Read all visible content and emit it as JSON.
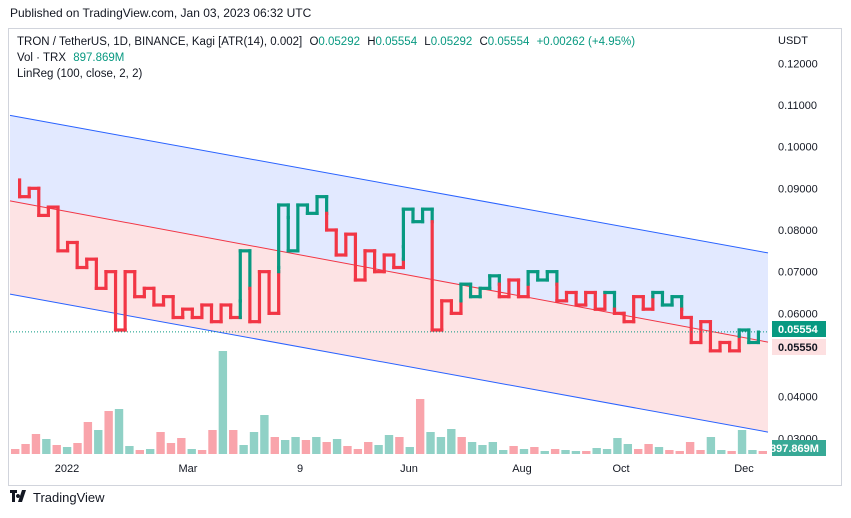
{
  "header": {
    "published": "Published on TradingView.com, Jan 03, 2023 06:32 UTC"
  },
  "legend": {
    "symbol": "TRON / TetherUS, 1D, BINANCE, Kagi [ATR(14), 0.002]",
    "o_label": "O",
    "o": "0.05292",
    "h_label": "H",
    "h": "0.05554",
    "l_label": "L",
    "l": "0.05292",
    "c_label": "C",
    "c": "0.05554",
    "change": "+0.00262 (+4.95%)",
    "vol_label": "Vol · TRX",
    "vol_value": "897.869M",
    "linreg": "LinReg (100, close, 2, 2)"
  },
  "footer": {
    "brand": "TradingView"
  },
  "colors": {
    "up": "#089981",
    "down": "#f23645",
    "channel_upper_fill": "#dfe7ff",
    "channel_lower_fill": "#fde0e1",
    "channel_line": "#2962ff",
    "mid_line": "#f23645"
  },
  "chart_data": {
    "type": "kagi",
    "currency": "USDT",
    "y_ticks": [
      "0.12000",
      "0.11000",
      "0.10000",
      "0.09000",
      "0.08000",
      "0.07000",
      "0.06000",
      "0.04000",
      "0.03000"
    ],
    "x_ticks": [
      "2022",
      "Mar",
      "9",
      "Jun",
      "Aug",
      "Oct",
      "Dec"
    ],
    "last_price": "0.05554",
    "regression_label": "0.05550",
    "volume_label": "897.869M",
    "ylim": [
      0.026,
      0.128
    ],
    "kagi": [
      {
        "x": 1,
        "y": 0.092,
        "t": "d"
      },
      {
        "x": 1,
        "y": 0.088,
        "t": "d"
      },
      {
        "x": 2,
        "y": 0.088,
        "t": "d"
      },
      {
        "x": 2,
        "y": 0.09,
        "t": "d"
      },
      {
        "x": 3,
        "y": 0.09,
        "t": "d"
      },
      {
        "x": 3,
        "y": 0.0835,
        "t": "d"
      },
      {
        "x": 4,
        "y": 0.0835,
        "t": "d"
      },
      {
        "x": 4,
        "y": 0.0855,
        "t": "d"
      },
      {
        "x": 5,
        "y": 0.0855,
        "t": "d"
      },
      {
        "x": 5,
        "y": 0.075,
        "t": "d"
      },
      {
        "x": 6,
        "y": 0.075,
        "t": "d"
      },
      {
        "x": 6,
        "y": 0.077,
        "t": "d"
      },
      {
        "x": 7,
        "y": 0.077,
        "t": "d"
      },
      {
        "x": 7,
        "y": 0.071,
        "t": "d"
      },
      {
        "x": 8,
        "y": 0.071,
        "t": "d"
      },
      {
        "x": 8,
        "y": 0.073,
        "t": "d"
      },
      {
        "x": 9,
        "y": 0.073,
        "t": "d"
      },
      {
        "x": 9,
        "y": 0.066,
        "t": "d"
      },
      {
        "x": 10,
        "y": 0.066,
        "t": "d"
      },
      {
        "x": 10,
        "y": 0.07,
        "t": "d"
      },
      {
        "x": 11,
        "y": 0.07,
        "t": "d"
      },
      {
        "x": 11,
        "y": 0.056,
        "t": "d"
      },
      {
        "x": 12,
        "y": 0.056,
        "t": "d"
      },
      {
        "x": 12,
        "y": 0.07,
        "t": "d"
      },
      {
        "x": 13,
        "y": 0.07,
        "t": "d"
      },
      {
        "x": 13,
        "y": 0.064,
        "t": "d"
      },
      {
        "x": 14,
        "y": 0.064,
        "t": "d"
      },
      {
        "x": 14,
        "y": 0.066,
        "t": "d"
      },
      {
        "x": 15,
        "y": 0.066,
        "t": "d"
      },
      {
        "x": 15,
        "y": 0.062,
        "t": "d"
      },
      {
        "x": 16,
        "y": 0.062,
        "t": "d"
      },
      {
        "x": 16,
        "y": 0.064,
        "t": "d"
      },
      {
        "x": 17,
        "y": 0.064,
        "t": "d"
      },
      {
        "x": 17,
        "y": 0.059,
        "t": "d"
      },
      {
        "x": 18,
        "y": 0.059,
        "t": "d"
      },
      {
        "x": 18,
        "y": 0.061,
        "t": "d"
      },
      {
        "x": 19,
        "y": 0.061,
        "t": "d"
      },
      {
        "x": 19,
        "y": 0.059,
        "t": "d"
      },
      {
        "x": 20,
        "y": 0.059,
        "t": "d"
      },
      {
        "x": 20,
        "y": 0.062,
        "t": "d"
      },
      {
        "x": 21,
        "y": 0.062,
        "t": "d"
      },
      {
        "x": 21,
        "y": 0.058,
        "t": "d"
      },
      {
        "x": 22,
        "y": 0.058,
        "t": "d"
      },
      {
        "x": 22,
        "y": 0.062,
        "t": "d"
      },
      {
        "x": 23,
        "y": 0.062,
        "t": "d"
      },
      {
        "x": 23,
        "y": 0.059,
        "t": "d"
      },
      {
        "x": 24,
        "y": 0.059,
        "t": "d"
      },
      {
        "x": 24,
        "y": 0.063,
        "t": "u"
      },
      {
        "x": 24,
        "y": 0.075,
        "t": "u"
      },
      {
        "x": 25,
        "y": 0.075,
        "t": "u"
      },
      {
        "x": 25,
        "y": 0.066,
        "t": "u"
      },
      {
        "x": 25,
        "y": 0.058,
        "t": "d"
      },
      {
        "x": 26,
        "y": 0.058,
        "t": "d"
      },
      {
        "x": 26,
        "y": 0.07,
        "t": "d"
      },
      {
        "x": 27,
        "y": 0.07,
        "t": "d"
      },
      {
        "x": 27,
        "y": 0.06,
        "t": "d"
      },
      {
        "x": 28,
        "y": 0.06,
        "t": "d"
      },
      {
        "x": 28,
        "y": 0.07,
        "t": "d"
      },
      {
        "x": 28,
        "y": 0.071,
        "t": "u"
      },
      {
        "x": 28,
        "y": 0.086,
        "t": "u"
      },
      {
        "x": 29,
        "y": 0.086,
        "t": "u"
      },
      {
        "x": 29,
        "y": 0.083,
        "t": "u"
      },
      {
        "x": 29,
        "y": 0.075,
        "t": "u"
      },
      {
        "x": 30,
        "y": 0.075,
        "t": "u"
      },
      {
        "x": 30,
        "y": 0.086,
        "t": "u"
      },
      {
        "x": 31,
        "y": 0.086,
        "t": "u"
      },
      {
        "x": 31,
        "y": 0.084,
        "t": "u"
      },
      {
        "x": 32,
        "y": 0.084,
        "t": "u"
      },
      {
        "x": 32,
        "y": 0.088,
        "t": "u"
      },
      {
        "x": 33,
        "y": 0.088,
        "t": "u"
      },
      {
        "x": 33,
        "y": 0.084,
        "t": "u"
      },
      {
        "x": 33,
        "y": 0.08,
        "t": "d"
      },
      {
        "x": 34,
        "y": 0.08,
        "t": "d"
      },
      {
        "x": 34,
        "y": 0.074,
        "t": "d"
      },
      {
        "x": 35,
        "y": 0.074,
        "t": "d"
      },
      {
        "x": 35,
        "y": 0.079,
        "t": "d"
      },
      {
        "x": 36,
        "y": 0.079,
        "t": "d"
      },
      {
        "x": 36,
        "y": 0.068,
        "t": "d"
      },
      {
        "x": 37,
        "y": 0.068,
        "t": "d"
      },
      {
        "x": 37,
        "y": 0.075,
        "t": "d"
      },
      {
        "x": 38,
        "y": 0.075,
        "t": "d"
      },
      {
        "x": 38,
        "y": 0.07,
        "t": "d"
      },
      {
        "x": 39,
        "y": 0.07,
        "t": "d"
      },
      {
        "x": 39,
        "y": 0.074,
        "t": "d"
      },
      {
        "x": 40,
        "y": 0.074,
        "t": "d"
      },
      {
        "x": 40,
        "y": 0.071,
        "t": "d"
      },
      {
        "x": 41,
        "y": 0.071,
        "t": "d"
      },
      {
        "x": 41,
        "y": 0.073,
        "t": "d"
      },
      {
        "x": 41,
        "y": 0.076,
        "t": "u"
      },
      {
        "x": 41,
        "y": 0.085,
        "t": "u"
      },
      {
        "x": 42,
        "y": 0.085,
        "t": "u"
      },
      {
        "x": 42,
        "y": 0.082,
        "t": "u"
      },
      {
        "x": 43,
        "y": 0.082,
        "t": "u"
      },
      {
        "x": 43,
        "y": 0.085,
        "t": "u"
      },
      {
        "x": 44,
        "y": 0.085,
        "t": "u"
      },
      {
        "x": 44,
        "y": 0.082,
        "t": "u"
      },
      {
        "x": 44,
        "y": 0.056,
        "t": "d"
      },
      {
        "x": 45,
        "y": 0.056,
        "t": "d"
      },
      {
        "x": 45,
        "y": 0.063,
        "t": "d"
      },
      {
        "x": 46,
        "y": 0.063,
        "t": "d"
      },
      {
        "x": 46,
        "y": 0.06,
        "t": "d"
      },
      {
        "x": 47,
        "y": 0.06,
        "t": "d"
      },
      {
        "x": 47,
        "y": 0.063,
        "t": "d"
      },
      {
        "x": 47,
        "y": 0.067,
        "t": "u"
      },
      {
        "x": 48,
        "y": 0.067,
        "t": "u"
      },
      {
        "x": 48,
        "y": 0.064,
        "t": "u"
      },
      {
        "x": 49,
        "y": 0.064,
        "t": "u"
      },
      {
        "x": 49,
        "y": 0.066,
        "t": "u"
      },
      {
        "x": 50,
        "y": 0.066,
        "t": "u"
      },
      {
        "x": 50,
        "y": 0.069,
        "t": "u"
      },
      {
        "x": 51,
        "y": 0.069,
        "t": "u"
      },
      {
        "x": 51,
        "y": 0.067,
        "t": "u"
      },
      {
        "x": 51,
        "y": 0.064,
        "t": "d"
      },
      {
        "x": 52,
        "y": 0.064,
        "t": "d"
      },
      {
        "x": 52,
        "y": 0.068,
        "t": "d"
      },
      {
        "x": 53,
        "y": 0.068,
        "t": "d"
      },
      {
        "x": 53,
        "y": 0.064,
        "t": "d"
      },
      {
        "x": 54,
        "y": 0.064,
        "t": "d"
      },
      {
        "x": 54,
        "y": 0.067,
        "t": "d"
      },
      {
        "x": 54,
        "y": 0.07,
        "t": "u"
      },
      {
        "x": 55,
        "y": 0.07,
        "t": "u"
      },
      {
        "x": 55,
        "y": 0.068,
        "t": "u"
      },
      {
        "x": 56,
        "y": 0.068,
        "t": "u"
      },
      {
        "x": 56,
        "y": 0.07,
        "t": "u"
      },
      {
        "x": 57,
        "y": 0.07,
        "t": "u"
      },
      {
        "x": 57,
        "y": 0.067,
        "t": "u"
      },
      {
        "x": 57,
        "y": 0.063,
        "t": "d"
      },
      {
        "x": 58,
        "y": 0.063,
        "t": "d"
      },
      {
        "x": 58,
        "y": 0.065,
        "t": "d"
      },
      {
        "x": 59,
        "y": 0.065,
        "t": "d"
      },
      {
        "x": 59,
        "y": 0.062,
        "t": "d"
      },
      {
        "x": 60,
        "y": 0.062,
        "t": "d"
      },
      {
        "x": 60,
        "y": 0.065,
        "t": "d"
      },
      {
        "x": 61,
        "y": 0.065,
        "t": "d"
      },
      {
        "x": 61,
        "y": 0.061,
        "t": "d"
      },
      {
        "x": 62,
        "y": 0.061,
        "t": "d"
      },
      {
        "x": 62,
        "y": 0.065,
        "t": "d"
      },
      {
        "x": 63,
        "y": 0.065,
        "t": "u"
      },
      {
        "x": 63,
        "y": 0.061,
        "t": "u"
      },
      {
        "x": 63,
        "y": 0.06,
        "t": "d"
      },
      {
        "x": 64,
        "y": 0.06,
        "t": "d"
      },
      {
        "x": 64,
        "y": 0.058,
        "t": "d"
      },
      {
        "x": 65,
        "y": 0.058,
        "t": "d"
      },
      {
        "x": 65,
        "y": 0.064,
        "t": "d"
      },
      {
        "x": 66,
        "y": 0.064,
        "t": "d"
      },
      {
        "x": 66,
        "y": 0.061,
        "t": "d"
      },
      {
        "x": 67,
        "y": 0.061,
        "t": "d"
      },
      {
        "x": 67,
        "y": 0.064,
        "t": "d"
      },
      {
        "x": 67,
        "y": 0.065,
        "t": "u"
      },
      {
        "x": 68,
        "y": 0.065,
        "t": "u"
      },
      {
        "x": 68,
        "y": 0.062,
        "t": "u"
      },
      {
        "x": 69,
        "y": 0.062,
        "t": "u"
      },
      {
        "x": 69,
        "y": 0.064,
        "t": "u"
      },
      {
        "x": 70,
        "y": 0.064,
        "t": "u"
      },
      {
        "x": 70,
        "y": 0.061,
        "t": "u"
      },
      {
        "x": 70,
        "y": 0.059,
        "t": "d"
      },
      {
        "x": 71,
        "y": 0.059,
        "t": "d"
      },
      {
        "x": 71,
        "y": 0.053,
        "t": "d"
      },
      {
        "x": 72,
        "y": 0.053,
        "t": "d"
      },
      {
        "x": 72,
        "y": 0.058,
        "t": "d"
      },
      {
        "x": 73,
        "y": 0.058,
        "t": "d"
      },
      {
        "x": 73,
        "y": 0.051,
        "t": "d"
      },
      {
        "x": 74,
        "y": 0.051,
        "t": "d"
      },
      {
        "x": 74,
        "y": 0.053,
        "t": "d"
      },
      {
        "x": 75,
        "y": 0.053,
        "t": "d"
      },
      {
        "x": 75,
        "y": 0.051,
        "t": "d"
      },
      {
        "x": 76,
        "y": 0.051,
        "t": "d"
      },
      {
        "x": 76,
        "y": 0.0545,
        "t": "d"
      },
      {
        "x": 76,
        "y": 0.056,
        "t": "u"
      },
      {
        "x": 77,
        "y": 0.056,
        "t": "u"
      },
      {
        "x": 77,
        "y": 0.053,
        "t": "u"
      },
      {
        "x": 78,
        "y": 0.053,
        "t": "u"
      },
      {
        "x": 78,
        "y": 0.0555,
        "t": "u"
      }
    ],
    "regression": {
      "x0": 0,
      "x1": 79,
      "mid_start": 0.087,
      "mid_end": 0.0531,
      "upper_start": 0.1075,
      "upper_end": 0.0745,
      "lower_start": 0.0646,
      "lower_end": 0.0315
    },
    "volume": [
      {
        "v": 5,
        "c": "d"
      },
      {
        "v": 10,
        "c": "d"
      },
      {
        "v": 20,
        "c": "d"
      },
      {
        "v": 15,
        "c": "u"
      },
      {
        "v": 9,
        "c": "d"
      },
      {
        "v": 7,
        "c": "u"
      },
      {
        "v": 11,
        "c": "d"
      },
      {
        "v": 32,
        "c": "d"
      },
      {
        "v": 24,
        "c": "u"
      },
      {
        "v": 43,
        "c": "d"
      },
      {
        "v": 45,
        "c": "u"
      },
      {
        "v": 8,
        "c": "u"
      },
      {
        "v": 4,
        "c": "d"
      },
      {
        "v": 5,
        "c": "u"
      },
      {
        "v": 22,
        "c": "d"
      },
      {
        "v": 11,
        "c": "d"
      },
      {
        "v": 16,
        "c": "d"
      },
      {
        "v": 5,
        "c": "u"
      },
      {
        "v": 4,
        "c": "d"
      },
      {
        "v": 24,
        "c": "d"
      },
      {
        "v": 103,
        "c": "u"
      },
      {
        "v": 24,
        "c": "d"
      },
      {
        "v": 9,
        "c": "u"
      },
      {
        "v": 22,
        "c": "u"
      },
      {
        "v": 39,
        "c": "u"
      },
      {
        "v": 17,
        "c": "d"
      },
      {
        "v": 14,
        "c": "u"
      },
      {
        "v": 17,
        "c": "u"
      },
      {
        "v": 14,
        "c": "d"
      },
      {
        "v": 17,
        "c": "u"
      },
      {
        "v": 12,
        "c": "d"
      },
      {
        "v": 15,
        "c": "u"
      },
      {
        "v": 8,
        "c": "d"
      },
      {
        "v": 5,
        "c": "d"
      },
      {
        "v": 12,
        "c": "d"
      },
      {
        "v": 9,
        "c": "u"
      },
      {
        "v": 19,
        "c": "u"
      },
      {
        "v": 17,
        "c": "d"
      },
      {
        "v": 7,
        "c": "u"
      },
      {
        "v": 55,
        "c": "d"
      },
      {
        "v": 22,
        "c": "u"
      },
      {
        "v": 17,
        "c": "u"
      },
      {
        "v": 25,
        "c": "u"
      },
      {
        "v": 17,
        "c": "d"
      },
      {
        "v": 12,
        "c": "u"
      },
      {
        "v": 9,
        "c": "u"
      },
      {
        "v": 12,
        "c": "u"
      },
      {
        "v": 4,
        "c": "u"
      },
      {
        "v": 8,
        "c": "d"
      },
      {
        "v": 5,
        "c": "u"
      },
      {
        "v": 7,
        "c": "d"
      },
      {
        "v": 3,
        "c": "u"
      },
      {
        "v": 5,
        "c": "d"
      },
      {
        "v": 4,
        "c": "u"
      },
      {
        "v": 3,
        "c": "u"
      },
      {
        "v": 3,
        "c": "d"
      },
      {
        "v": 6,
        "c": "u"
      },
      {
        "v": 5,
        "c": "u"
      },
      {
        "v": 16,
        "c": "u"
      },
      {
        "v": 10,
        "c": "u"
      },
      {
        "v": 5,
        "c": "d"
      },
      {
        "v": 10,
        "c": "d"
      },
      {
        "v": 7,
        "c": "u"
      },
      {
        "v": 4,
        "c": "d"
      },
      {
        "v": 3,
        "c": "d"
      },
      {
        "v": 12,
        "c": "d"
      },
      {
        "v": 4,
        "c": "d"
      },
      {
        "v": 17,
        "c": "u"
      },
      {
        "v": 4,
        "c": "u"
      },
      {
        "v": 3,
        "c": "d"
      },
      {
        "v": 24,
        "c": "u"
      },
      {
        "v": 4,
        "c": "u"
      },
      {
        "v": 3,
        "c": "d"
      }
    ]
  }
}
